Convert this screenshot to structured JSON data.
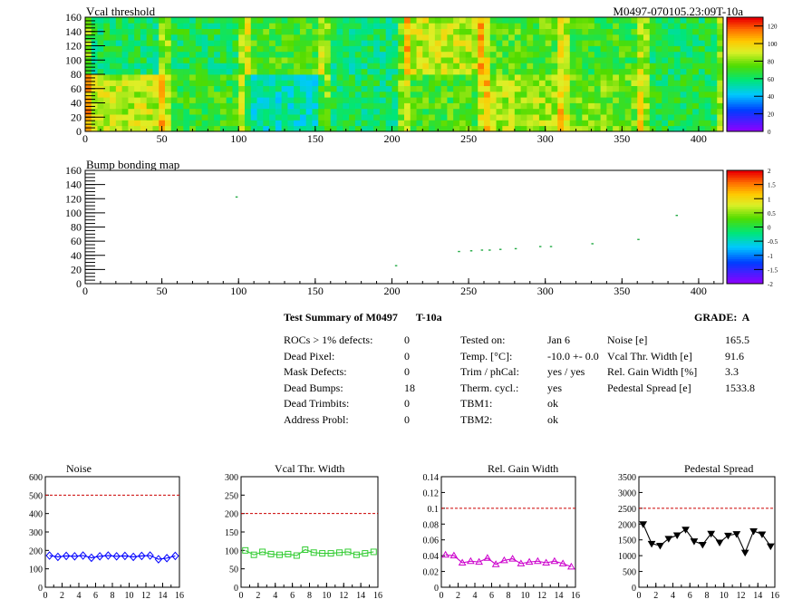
{
  "chart_data": [
    {
      "type": "heatmap",
      "title": "Vcal threshold",
      "subtitle": "M0497-070105.23:09T-10a",
      "xlim": [
        0,
        416
      ],
      "ylim": [
        0,
        160
      ],
      "xticks": [
        0,
        50,
        100,
        150,
        200,
        250,
        300,
        350,
        400
      ],
      "yticks": [
        0,
        20,
        40,
        60,
        80,
        100,
        120,
        140,
        160
      ],
      "zlim": [
        0,
        130
      ],
      "zticks": [
        0,
        20,
        40,
        60,
        80,
        100,
        120
      ],
      "blocks_bottom": [
        88,
        70,
        52,
        62,
        72,
        85,
        78,
        65
      ],
      "blocks_top": [
        62,
        64,
        72,
        60,
        88,
        74,
        70,
        64
      ],
      "grid": false
    },
    {
      "type": "heatmap",
      "title": "Bump bonding map",
      "xlim": [
        0,
        416
      ],
      "ylim": [
        0,
        160
      ],
      "xticks": [
        0,
        50,
        100,
        150,
        200,
        250,
        300,
        350,
        400
      ],
      "yticks": [
        0,
        20,
        40,
        60,
        80,
        100,
        120,
        140,
        160
      ],
      "zlim": [
        -2,
        2
      ],
      "zticks": [
        "-2",
        "-1.5",
        "-1",
        "-0.5",
        "0",
        "0.5",
        "1",
        "1.5",
        "2"
      ],
      "points": [
        {
          "x": 98,
          "y": 122
        },
        {
          "x": 202,
          "y": 25
        },
        {
          "x": 243,
          "y": 45
        },
        {
          "x": 251,
          "y": 46
        },
        {
          "x": 258,
          "y": 47
        },
        {
          "x": 263,
          "y": 47
        },
        {
          "x": 270,
          "y": 48
        },
        {
          "x": 280,
          "y": 49
        },
        {
          "x": 296,
          "y": 52
        },
        {
          "x": 303,
          "y": 52
        },
        {
          "x": 330,
          "y": 56
        },
        {
          "x": 360,
          "y": 62
        },
        {
          "x": 385,
          "y": 96
        }
      ],
      "grid": false
    },
    {
      "type": "line",
      "title": "Noise",
      "xlim": [
        0,
        16
      ],
      "ylim": [
        0,
        600
      ],
      "xticks": [
        0,
        2,
        4,
        6,
        8,
        10,
        12,
        14,
        16
      ],
      "yticks": [
        0,
        100,
        200,
        300,
        400,
        500,
        600
      ],
      "threshold": 500,
      "marker": "diamond",
      "color": "#0000ff",
      "x": [
        0.5,
        1.5,
        2.5,
        3.5,
        4.5,
        5.5,
        6.5,
        7.5,
        8.5,
        9.5,
        10.5,
        11.5,
        12.5,
        13.5,
        14.5,
        15.5
      ],
      "values": [
        172,
        165,
        170,
        168,
        172,
        160,
        168,
        172,
        168,
        170,
        165,
        170,
        172,
        152,
        158,
        170
      ]
    },
    {
      "type": "line",
      "title": "Vcal Thr. Width",
      "xlim": [
        0,
        16
      ],
      "ylim": [
        0,
        300
      ],
      "xticks": [
        0,
        2,
        4,
        6,
        8,
        10,
        12,
        14,
        16
      ],
      "yticks": [
        0,
        50,
        100,
        150,
        200,
        250,
        300
      ],
      "threshold": 200,
      "marker": "square",
      "color": "#33cc33",
      "x": [
        0.5,
        1.5,
        2.5,
        3.5,
        4.5,
        5.5,
        6.5,
        7.5,
        8.5,
        9.5,
        10.5,
        11.5,
        12.5,
        13.5,
        14.5,
        15.5
      ],
      "values": [
        100,
        88,
        96,
        90,
        88,
        90,
        86,
        102,
        94,
        92,
        92,
        94,
        96,
        88,
        92,
        96
      ]
    },
    {
      "type": "line",
      "title": "Rel. Gain Width",
      "xlim": [
        0,
        16
      ],
      "ylim": [
        0,
        0.14
      ],
      "xticks": [
        0,
        2,
        4,
        6,
        8,
        10,
        12,
        14,
        16
      ],
      "yticks": [
        "0",
        "0.02",
        "0.04",
        "0.06",
        "0.08",
        "0.1",
        "0.12",
        "0.14"
      ],
      "threshold": 0.1,
      "marker": "triangle",
      "color": "#cc00cc",
      "x": [
        0.5,
        1.5,
        2.5,
        3.5,
        4.5,
        5.5,
        6.5,
        7.5,
        8.5,
        9.5,
        10.5,
        11.5,
        12.5,
        13.5,
        14.5,
        15.5
      ],
      "values": [
        0.041,
        0.04,
        0.031,
        0.033,
        0.032,
        0.037,
        0.029,
        0.034,
        0.036,
        0.03,
        0.032,
        0.033,
        0.031,
        0.033,
        0.03,
        0.026
      ]
    },
    {
      "type": "line",
      "title": "Pedestal Spread",
      "xlim": [
        0,
        16
      ],
      "ylim": [
        0,
        3500
      ],
      "xticks": [
        0,
        2,
        4,
        6,
        8,
        10,
        12,
        14,
        16
      ],
      "yticks": [
        0,
        500,
        1000,
        1500,
        2000,
        2500,
        3000,
        3500
      ],
      "threshold": 2500,
      "marker": "triangle-down",
      "color": "#000000",
      "x": [
        0.5,
        1.5,
        2.5,
        3.5,
        4.5,
        5.5,
        6.5,
        7.5,
        8.5,
        9.5,
        10.5,
        11.5,
        12.5,
        13.5,
        14.5,
        15.5
      ],
      "values": [
        2000,
        1380,
        1320,
        1540,
        1650,
        1830,
        1460,
        1350,
        1700,
        1420,
        1640,
        1690,
        1100,
        1780,
        1680,
        1300
      ]
    }
  ],
  "summary": {
    "title": "Test Summary of M0497",
    "test": "T-10a",
    "grade_label": "GRADE:  A",
    "col1_labels": [
      "ROCs > 1% defects:",
      "Dead Pixel:",
      "Mask Defects:",
      "Dead Bumps:",
      "Dead Trimbits:",
      "Address Probl:"
    ],
    "col1_values": [
      "0",
      "0",
      "0",
      "18",
      "0",
      "0"
    ],
    "col2_labels": [
      "Tested on:",
      "Temp. [°C]:",
      "Trim / phCal:",
      "Therm. cycl.:",
      "TBM1:",
      "TBM2:"
    ],
    "col2_values": [
      "Jan 6",
      "-10.0 +- 0.0",
      "yes / yes",
      "yes",
      "ok",
      "ok"
    ],
    "col3_labels": [
      "Noise [e]",
      "Vcal Thr. Width [e]",
      "Rel. Gain Width [%]",
      "Pedestal Spread [e]"
    ],
    "col3_values": [
      "165.5",
      "91.6",
      "3.3",
      "1533.8"
    ]
  }
}
